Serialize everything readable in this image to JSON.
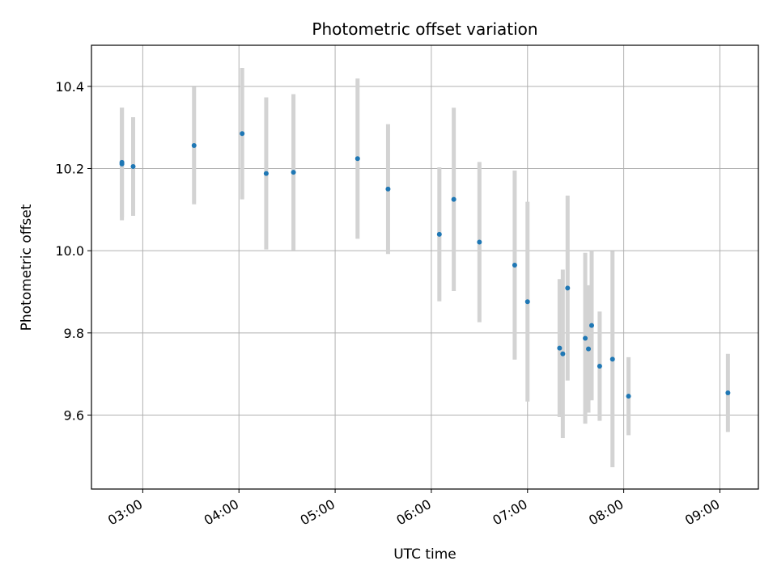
{
  "chart_data": {
    "type": "scatter",
    "title": "Photometric offset variation",
    "xlabel": "UTC time",
    "ylabel": "Photometric offset",
    "x_tick_labels": [
      "03:00",
      "04:00",
      "05:00",
      "06:00",
      "07:00",
      "08:00",
      "09:00"
    ],
    "y_tick_labels": [
      "9.6",
      "9.8",
      "10.0",
      "10.2",
      "10.4"
    ],
    "xlim": [
      "02:28",
      "09:24"
    ],
    "ylim": [
      9.42,
      10.5
    ],
    "grid": true,
    "errorbar_color": "#d3d3d3",
    "point_color": "#1f77b4",
    "points": [
      {
        "x": "02:47",
        "y": 10.211,
        "err": 0.137
      },
      {
        "x": "02:47",
        "y": 10.215,
        "err": 0.133
      },
      {
        "x": "02:54",
        "y": 10.205,
        "err": 0.12
      },
      {
        "x": "03:32",
        "y": 10.256,
        "err": 0.143
      },
      {
        "x": "04:02",
        "y": 10.285,
        "err": 0.16
      },
      {
        "x": "04:17",
        "y": 10.188,
        "err": 0.185
      },
      {
        "x": "04:34",
        "y": 10.191,
        "err": 0.19
      },
      {
        "x": "05:14",
        "y": 10.224,
        "err": 0.195
      },
      {
        "x": "05:33",
        "y": 10.15,
        "err": 0.158
      },
      {
        "x": "06:05",
        "y": 10.04,
        "err": 0.163
      },
      {
        "x": "06:14",
        "y": 10.125,
        "err": 0.223
      },
      {
        "x": "06:30",
        "y": 10.021,
        "err": 0.195
      },
      {
        "x": "06:52",
        "y": 9.965,
        "err": 0.23
      },
      {
        "x": "07:00",
        "y": 9.876,
        "err": 0.243
      },
      {
        "x": "07:20",
        "y": 9.763,
        "err": 0.168
      },
      {
        "x": "07:22",
        "y": 9.749,
        "err": 0.205
      },
      {
        "x": "07:25",
        "y": 9.909,
        "err": 0.225
      },
      {
        "x": "07:36",
        "y": 9.787,
        "err": 0.208
      },
      {
        "x": "07:38",
        "y": 9.761,
        "err": 0.155
      },
      {
        "x": "07:40",
        "y": 9.818,
        "err": 0.182
      },
      {
        "x": "07:45",
        "y": 9.719,
        "err": 0.133
      },
      {
        "x": "07:53",
        "y": 9.736,
        "err": 0.263
      },
      {
        "x": "08:03",
        "y": 9.646,
        "err": 0.095
      },
      {
        "x": "09:05",
        "y": 9.654,
        "err": 0.095
      }
    ]
  }
}
